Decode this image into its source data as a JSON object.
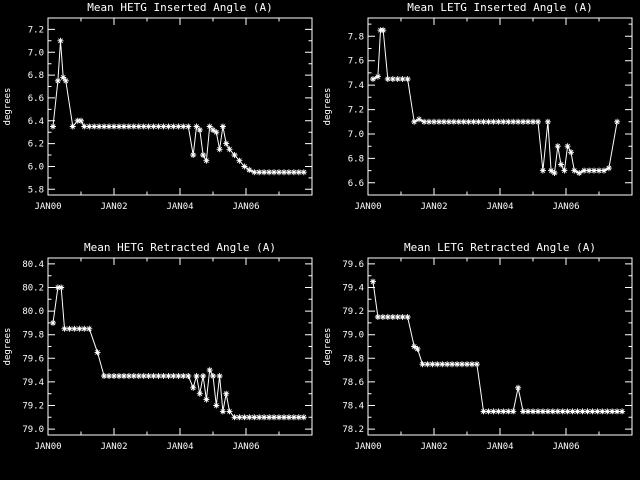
{
  "background": "#000000",
  "foreground": "#ffffff",
  "chart_data": [
    {
      "id": "hetg-inserted",
      "type": "line",
      "title": "Mean HETG Inserted Angle (A)",
      "xlabel": "",
      "ylabel": "degrees",
      "legend": "none",
      "grid": false,
      "marker": "asterisk",
      "xlim": [
        2000,
        2008
      ],
      "ylim": [
        5.75,
        7.3
      ],
      "xticks": [
        {
          "v": 2000,
          "label": "JAN00"
        },
        {
          "v": 2002,
          "label": "JAN02"
        },
        {
          "v": 2004,
          "label": "JAN04"
        },
        {
          "v": 2006,
          "label": "JAN06"
        }
      ],
      "yticks": [
        {
          "v": 5.8,
          "label": "5.8"
        },
        {
          "v": 6.0,
          "label": "6.0"
        },
        {
          "v": 6.2,
          "label": "6.2"
        },
        {
          "v": 6.4,
          "label": "6.4"
        },
        {
          "v": 6.6,
          "label": "6.6"
        },
        {
          "v": 6.8,
          "label": "6.8"
        },
        {
          "v": 7.0,
          "label": "7.0"
        },
        {
          "v": 7.2,
          "label": "7.2"
        }
      ],
      "points": [
        [
          2000.15,
          6.35
        ],
        [
          2000.3,
          6.75
        ],
        [
          2000.38,
          7.1
        ],
        [
          2000.46,
          6.78
        ],
        [
          2000.54,
          6.75
        ],
        [
          2000.75,
          6.35
        ],
        [
          2000.9,
          6.4
        ],
        [
          2001.0,
          6.4
        ],
        [
          2001.1,
          6.35
        ],
        [
          2001.25,
          6.35
        ],
        [
          2001.4,
          6.35
        ],
        [
          2001.55,
          6.35
        ],
        [
          2001.7,
          6.35
        ],
        [
          2001.85,
          6.35
        ],
        [
          2002.0,
          6.35
        ],
        [
          2002.15,
          6.35
        ],
        [
          2002.3,
          6.35
        ],
        [
          2002.45,
          6.35
        ],
        [
          2002.6,
          6.35
        ],
        [
          2002.75,
          6.35
        ],
        [
          2002.9,
          6.35
        ],
        [
          2003.05,
          6.35
        ],
        [
          2003.2,
          6.35
        ],
        [
          2003.35,
          6.35
        ],
        [
          2003.5,
          6.35
        ],
        [
          2003.65,
          6.35
        ],
        [
          2003.8,
          6.35
        ],
        [
          2003.95,
          6.35
        ],
        [
          2004.1,
          6.35
        ],
        [
          2004.25,
          6.35
        ],
        [
          2004.4,
          6.1
        ],
        [
          2004.5,
          6.35
        ],
        [
          2004.6,
          6.32
        ],
        [
          2004.7,
          6.1
        ],
        [
          2004.8,
          6.05
        ],
        [
          2004.9,
          6.35
        ],
        [
          2005.0,
          6.32
        ],
        [
          2005.1,
          6.3
        ],
        [
          2005.2,
          6.15
        ],
        [
          2005.3,
          6.35
        ],
        [
          2005.4,
          6.2
        ],
        [
          2005.5,
          6.15
        ],
        [
          2005.65,
          6.1
        ],
        [
          2005.8,
          6.05
        ],
        [
          2005.95,
          6.0
        ],
        [
          2006.1,
          5.97
        ],
        [
          2006.25,
          5.95
        ],
        [
          2006.4,
          5.95
        ],
        [
          2006.55,
          5.95
        ],
        [
          2006.7,
          5.95
        ],
        [
          2006.85,
          5.95
        ],
        [
          2007.0,
          5.95
        ],
        [
          2007.15,
          5.95
        ],
        [
          2007.3,
          5.95
        ],
        [
          2007.45,
          5.95
        ],
        [
          2007.6,
          5.95
        ],
        [
          2007.75,
          5.95
        ]
      ]
    },
    {
      "id": "letg-inserted",
      "type": "line",
      "title": "Mean LETG Inserted Angle (A)",
      "xlabel": "",
      "ylabel": "degrees",
      "legend": "none",
      "grid": false,
      "marker": "asterisk",
      "xlim": [
        2000,
        2008
      ],
      "ylim": [
        6.5,
        7.95
      ],
      "xticks": [
        {
          "v": 2000,
          "label": "JAN00"
        },
        {
          "v": 2002,
          "label": "JAN02"
        },
        {
          "v": 2004,
          "label": "JAN04"
        },
        {
          "v": 2006,
          "label": "JAN06"
        }
      ],
      "yticks": [
        {
          "v": 6.6,
          "label": "6.6"
        },
        {
          "v": 6.8,
          "label": "6.8"
        },
        {
          "v": 7.0,
          "label": "7.0"
        },
        {
          "v": 7.2,
          "label": "7.2"
        },
        {
          "v": 7.4,
          "label": "7.4"
        },
        {
          "v": 7.6,
          "label": "7.6"
        },
        {
          "v": 7.8,
          "label": "7.8"
        }
      ],
      "points": [
        [
          2000.15,
          7.45
        ],
        [
          2000.3,
          7.47
        ],
        [
          2000.38,
          7.85
        ],
        [
          2000.46,
          7.85
        ],
        [
          2000.6,
          7.45
        ],
        [
          2000.75,
          7.45
        ],
        [
          2000.9,
          7.45
        ],
        [
          2001.05,
          7.45
        ],
        [
          2001.2,
          7.45
        ],
        [
          2001.4,
          7.1
        ],
        [
          2001.55,
          7.12
        ],
        [
          2001.7,
          7.1
        ],
        [
          2001.85,
          7.1
        ],
        [
          2002.0,
          7.1
        ],
        [
          2002.15,
          7.1
        ],
        [
          2002.3,
          7.1
        ],
        [
          2002.45,
          7.1
        ],
        [
          2002.6,
          7.1
        ],
        [
          2002.75,
          7.1
        ],
        [
          2002.9,
          7.1
        ],
        [
          2003.05,
          7.1
        ],
        [
          2003.2,
          7.1
        ],
        [
          2003.35,
          7.1
        ],
        [
          2003.5,
          7.1
        ],
        [
          2003.65,
          7.1
        ],
        [
          2003.8,
          7.1
        ],
        [
          2003.95,
          7.1
        ],
        [
          2004.1,
          7.1
        ],
        [
          2004.25,
          7.1
        ],
        [
          2004.4,
          7.1
        ],
        [
          2004.55,
          7.1
        ],
        [
          2004.7,
          7.1
        ],
        [
          2004.85,
          7.1
        ],
        [
          2005.0,
          7.1
        ],
        [
          2005.15,
          7.1
        ],
        [
          2005.3,
          6.7
        ],
        [
          2005.45,
          7.1
        ],
        [
          2005.55,
          6.7
        ],
        [
          2005.65,
          6.68
        ],
        [
          2005.75,
          6.9
        ],
        [
          2005.85,
          6.75
        ],
        [
          2005.95,
          6.7
        ],
        [
          2006.05,
          6.9
        ],
        [
          2006.15,
          6.85
        ],
        [
          2006.25,
          6.7
        ],
        [
          2006.4,
          6.68
        ],
        [
          2006.55,
          6.7
        ],
        [
          2006.7,
          6.7
        ],
        [
          2006.85,
          6.7
        ],
        [
          2007.0,
          6.7
        ],
        [
          2007.15,
          6.7
        ],
        [
          2007.3,
          6.72
        ],
        [
          2007.55,
          7.1
        ]
      ]
    },
    {
      "id": "hetg-retracted",
      "type": "line",
      "title": "Mean HETG Retracted Angle (A)",
      "xlabel": "",
      "ylabel": "degrees",
      "legend": "none",
      "grid": false,
      "marker": "asterisk",
      "xlim": [
        2000,
        2008
      ],
      "ylim": [
        78.95,
        80.45
      ],
      "xticks": [
        {
          "v": 2000,
          "label": "JAN00"
        },
        {
          "v": 2002,
          "label": "JAN02"
        },
        {
          "v": 2004,
          "label": "JAN04"
        },
        {
          "v": 2006,
          "label": "JAN06"
        }
      ],
      "yticks": [
        {
          "v": 79.0,
          "label": "79.0"
        },
        {
          "v": 79.2,
          "label": "79.2"
        },
        {
          "v": 79.4,
          "label": "79.4"
        },
        {
          "v": 79.6,
          "label": "79.6"
        },
        {
          "v": 79.8,
          "label": "79.8"
        },
        {
          "v": 80.0,
          "label": "80.0"
        },
        {
          "v": 80.2,
          "label": "80.2"
        },
        {
          "v": 80.4,
          "label": "80.4"
        }
      ],
      "points": [
        [
          2000.15,
          79.9
        ],
        [
          2000.3,
          80.2
        ],
        [
          2000.4,
          80.2
        ],
        [
          2000.5,
          79.85
        ],
        [
          2000.65,
          79.85
        ],
        [
          2000.8,
          79.85
        ],
        [
          2000.95,
          79.85
        ],
        [
          2001.1,
          79.85
        ],
        [
          2001.25,
          79.85
        ],
        [
          2001.5,
          79.65
        ],
        [
          2001.7,
          79.45
        ],
        [
          2001.85,
          79.45
        ],
        [
          2002.0,
          79.45
        ],
        [
          2002.15,
          79.45
        ],
        [
          2002.3,
          79.45
        ],
        [
          2002.45,
          79.45
        ],
        [
          2002.6,
          79.45
        ],
        [
          2002.75,
          79.45
        ],
        [
          2002.9,
          79.45
        ],
        [
          2003.05,
          79.45
        ],
        [
          2003.2,
          79.45
        ],
        [
          2003.35,
          79.45
        ],
        [
          2003.5,
          79.45
        ],
        [
          2003.65,
          79.45
        ],
        [
          2003.8,
          79.45
        ],
        [
          2003.95,
          79.45
        ],
        [
          2004.1,
          79.45
        ],
        [
          2004.25,
          79.45
        ],
        [
          2004.4,
          79.35
        ],
        [
          2004.5,
          79.45
        ],
        [
          2004.6,
          79.3
        ],
        [
          2004.7,
          79.45
        ],
        [
          2004.8,
          79.25
        ],
        [
          2004.9,
          79.5
        ],
        [
          2005.0,
          79.45
        ],
        [
          2005.1,
          79.2
        ],
        [
          2005.2,
          79.45
        ],
        [
          2005.3,
          79.15
        ],
        [
          2005.4,
          79.3
        ],
        [
          2005.5,
          79.15
        ],
        [
          2005.65,
          79.1
        ],
        [
          2005.8,
          79.1
        ],
        [
          2005.95,
          79.1
        ],
        [
          2006.1,
          79.1
        ],
        [
          2006.25,
          79.1
        ],
        [
          2006.4,
          79.1
        ],
        [
          2006.55,
          79.1
        ],
        [
          2006.7,
          79.1
        ],
        [
          2006.85,
          79.1
        ],
        [
          2007.0,
          79.1
        ],
        [
          2007.15,
          79.1
        ],
        [
          2007.3,
          79.1
        ],
        [
          2007.45,
          79.1
        ],
        [
          2007.6,
          79.1
        ],
        [
          2007.75,
          79.1
        ]
      ]
    },
    {
      "id": "letg-retracted",
      "type": "line",
      "title": "Mean LETG Retracted Angle (A)",
      "xlabel": "",
      "ylabel": "degrees",
      "legend": "none",
      "grid": false,
      "marker": "asterisk",
      "xlim": [
        2000,
        2008
      ],
      "ylim": [
        78.15,
        79.65
      ],
      "xticks": [
        {
          "v": 2000,
          "label": "JAN00"
        },
        {
          "v": 2002,
          "label": "JAN02"
        },
        {
          "v": 2004,
          "label": "JAN04"
        },
        {
          "v": 2006,
          "label": "JAN06"
        }
      ],
      "yticks": [
        {
          "v": 78.2,
          "label": "78.2"
        },
        {
          "v": 78.4,
          "label": "78.4"
        },
        {
          "v": 78.6,
          "label": "78.6"
        },
        {
          "v": 78.8,
          "label": "78.8"
        },
        {
          "v": 79.0,
          "label": "79.0"
        },
        {
          "v": 79.2,
          "label": "79.2"
        },
        {
          "v": 79.4,
          "label": "79.4"
        },
        {
          "v": 79.6,
          "label": "79.6"
        }
      ],
      "points": [
        [
          2000.15,
          79.45
        ],
        [
          2000.3,
          79.15
        ],
        [
          2000.45,
          79.15
        ],
        [
          2000.6,
          79.15
        ],
        [
          2000.75,
          79.15
        ],
        [
          2000.9,
          79.15
        ],
        [
          2001.05,
          79.15
        ],
        [
          2001.2,
          79.15
        ],
        [
          2001.4,
          78.9
        ],
        [
          2001.5,
          78.88
        ],
        [
          2001.65,
          78.75
        ],
        [
          2001.8,
          78.75
        ],
        [
          2001.95,
          78.75
        ],
        [
          2002.1,
          78.75
        ],
        [
          2002.25,
          78.75
        ],
        [
          2002.4,
          78.75
        ],
        [
          2002.55,
          78.75
        ],
        [
          2002.7,
          78.75
        ],
        [
          2002.85,
          78.75
        ],
        [
          2003.0,
          78.75
        ],
        [
          2003.15,
          78.75
        ],
        [
          2003.3,
          78.75
        ],
        [
          2003.5,
          78.35
        ],
        [
          2003.65,
          78.35
        ],
        [
          2003.8,
          78.35
        ],
        [
          2003.95,
          78.35
        ],
        [
          2004.1,
          78.35
        ],
        [
          2004.25,
          78.35
        ],
        [
          2004.4,
          78.35
        ],
        [
          2004.55,
          78.55
        ],
        [
          2004.7,
          78.35
        ],
        [
          2004.85,
          78.35
        ],
        [
          2005.0,
          78.35
        ],
        [
          2005.15,
          78.35
        ],
        [
          2005.3,
          78.35
        ],
        [
          2005.45,
          78.35
        ],
        [
          2005.6,
          78.35
        ],
        [
          2005.75,
          78.35
        ],
        [
          2005.9,
          78.35
        ],
        [
          2006.05,
          78.35
        ],
        [
          2006.2,
          78.35
        ],
        [
          2006.35,
          78.35
        ],
        [
          2006.5,
          78.35
        ],
        [
          2006.65,
          78.35
        ],
        [
          2006.8,
          78.35
        ],
        [
          2006.95,
          78.35
        ],
        [
          2007.1,
          78.35
        ],
        [
          2007.25,
          78.35
        ],
        [
          2007.4,
          78.35
        ],
        [
          2007.55,
          78.35
        ],
        [
          2007.7,
          78.35
        ]
      ]
    }
  ]
}
